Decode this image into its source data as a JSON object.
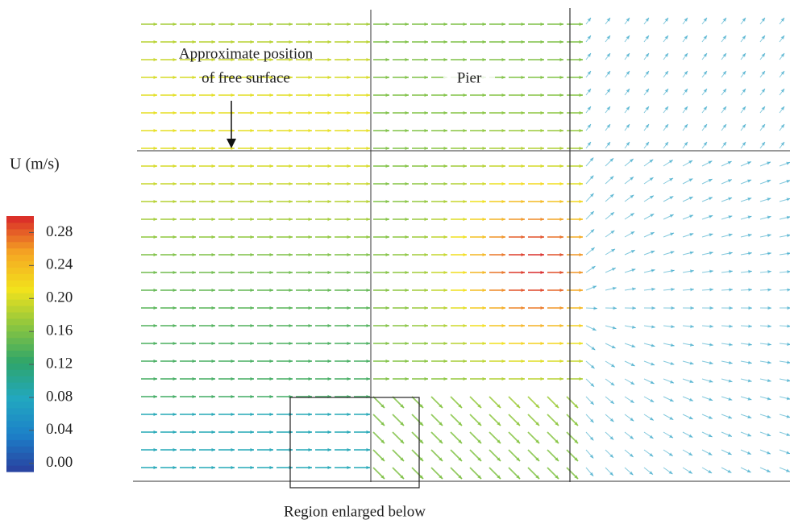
{
  "chart_data": {
    "type": "vector-field",
    "colorbar": {
      "label": "U (m/s)",
      "clim": [
        -0.01,
        0.3
      ],
      "ticks": [
        {
          "value": 0,
          "label": "0.00"
        },
        0.04,
        0.08,
        0.12,
        0.16,
        {
          "value": 0.2,
          "label": "0.20"
        },
        0.24,
        0.28
      ],
      "colormap": [
        "#2a3f9e",
        "#1c7fc8",
        "#22a7c0",
        "#2ea56a",
        "#8cc63f",
        "#f2e21c",
        "#f5a623",
        "#d8262a"
      ]
    },
    "annotations": {
      "free_surface": [
        "Approximate position",
        "of free surface"
      ],
      "pier": "Pier",
      "region": "Region enlarged below"
    }
  }
}
